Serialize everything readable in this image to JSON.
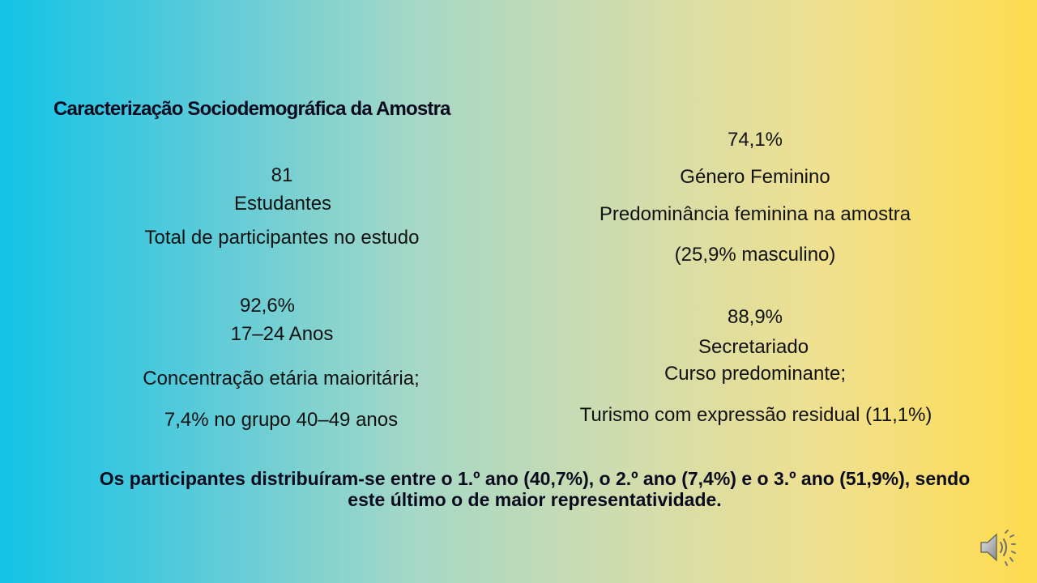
{
  "slide": {
    "title": "Caracterização Sociodemográfica da Amostra",
    "participants": {
      "value": "81",
      "label": "Estudantes",
      "description": "Total de participantes no estudo"
    },
    "gender": {
      "value": "74,1%",
      "label": "Género Feminino",
      "description": "Predominância feminina na amostra",
      "note": "(25,9% masculino)"
    },
    "age": {
      "value": "92,6%",
      "label": "17–24 Anos",
      "description": "Concentração etária maioritária;",
      "note": "7,4% no grupo 40–49 anos"
    },
    "course": {
      "value": "88,9%",
      "label": "Secretariado",
      "description": "Curso predominante;",
      "note": "Turismo com expressão residual (11,1%)"
    },
    "summary_line1": "Os participantes distribuíram-se entre o 1.º ano (40,7%), o 2.º ano (7,4%) e o 3.º ano (51,9%), sendo",
    "summary_line2": "este último o de maior representatividade."
  },
  "audio": {
    "icon": "speaker-icon"
  }
}
